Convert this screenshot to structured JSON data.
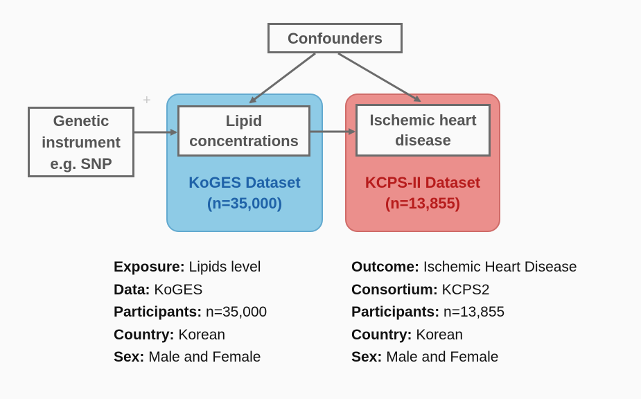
{
  "diagram": {
    "confounders": "Confounders",
    "genetic_instrument": [
      "Genetic",
      "instrument",
      "e.g. SNP"
    ],
    "exposure_node": [
      "Lipid",
      "concentrations"
    ],
    "outcome_node": [
      "Ischemic heart",
      "disease"
    ],
    "exposure_dataset": {
      "name": "KoGES Dataset",
      "n": "(n=35,000)"
    },
    "outcome_dataset": {
      "name": "KCPS-II Dataset",
      "n": "(n=13,855)"
    },
    "colors": {
      "koges_fill": "#8ecbe6",
      "koges_text": "#1f62a8",
      "kcps_fill": "#eb8f8c",
      "kcps_text": "#b71c1c",
      "node_border": "#6b6b6b"
    }
  },
  "exposure_info": [
    {
      "label": "Exposure:",
      "value": "Lipids level"
    },
    {
      "label": "Data:",
      "value": "KoGES"
    },
    {
      "label": "Participants:",
      "value": "n=35,000"
    },
    {
      "label": "Country:",
      "value": "Korean"
    },
    {
      "label": "Sex:",
      "value": "Male and Female"
    }
  ],
  "outcome_info": [
    {
      "label": "Outcome:",
      "value": "Ischemic Heart Disease"
    },
    {
      "label": "Consortium:",
      "value": "KCPS2"
    },
    {
      "label": "Participants:",
      "value": "n=13,855"
    },
    {
      "label": "Country:",
      "value": "Korean"
    },
    {
      "label": "Sex:",
      "value": "Male and Female"
    }
  ]
}
